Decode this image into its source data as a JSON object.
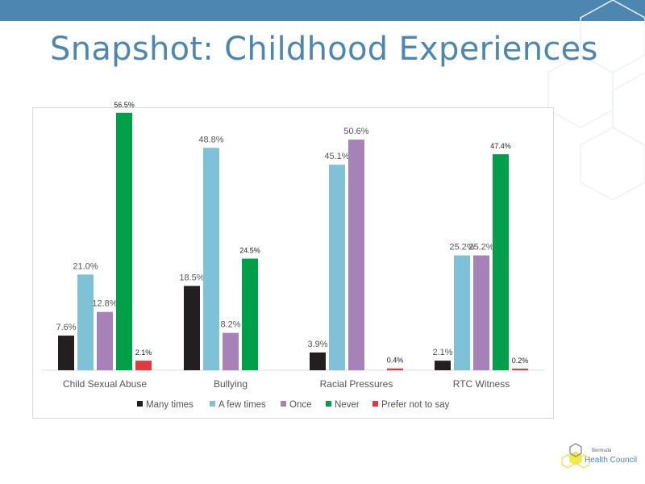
{
  "slide": {
    "title": "Snapshot: Childhood Experiences"
  },
  "logo": {
    "small_text": "Bermuda",
    "main_text": "Health Council",
    "icon": "hexagon-logo-icon"
  },
  "colors": {
    "accent": "#4d86b0",
    "many_times": "#231f20",
    "a_few_times": "#7fc1d6",
    "once": "#a682b8",
    "never": "#00a04b",
    "prefer_not": "#e03a3e"
  },
  "chart_data": {
    "type": "bar",
    "categories": [
      "Child Sexual Abuse",
      "Bullying",
      "Racial Pressures",
      "RTC Witness"
    ],
    "series": [
      {
        "name": "Many times",
        "color": "#231f20",
        "values": [
          7.6,
          18.5,
          3.9,
          2.1
        ],
        "labels": [
          "7.6%",
          "18.5%",
          "3.9%",
          "2.1%"
        ]
      },
      {
        "name": "A few times",
        "color": "#7fc1d6",
        "values": [
          21.0,
          48.8,
          45.1,
          25.2
        ],
        "labels": [
          "21.0%",
          "48.8%",
          "45.1%",
          "25.2%"
        ]
      },
      {
        "name": "Once",
        "color": "#a682b8",
        "values": [
          12.8,
          8.2,
          50.6,
          25.2
        ],
        "labels": [
          "12.8%",
          "8.2%",
          "50.6%",
          "25.2%"
        ]
      },
      {
        "name": "Never",
        "color": "#00a04b",
        "values": [
          56.5,
          24.5,
          null,
          47.4
        ],
        "labels": [
          "56.5%",
          "24.5%",
          "",
          "47.4%"
        ]
      },
      {
        "name": "Prefer not to say",
        "color": "#e03a3e",
        "values": [
          2.1,
          null,
          0.4,
          0.2
        ],
        "labels": [
          "2.1%",
          "",
          "0.4%",
          "0.2%"
        ]
      }
    ],
    "ylim": [
      0,
      60
    ],
    "grid": false,
    "legend_position": "bottom"
  }
}
